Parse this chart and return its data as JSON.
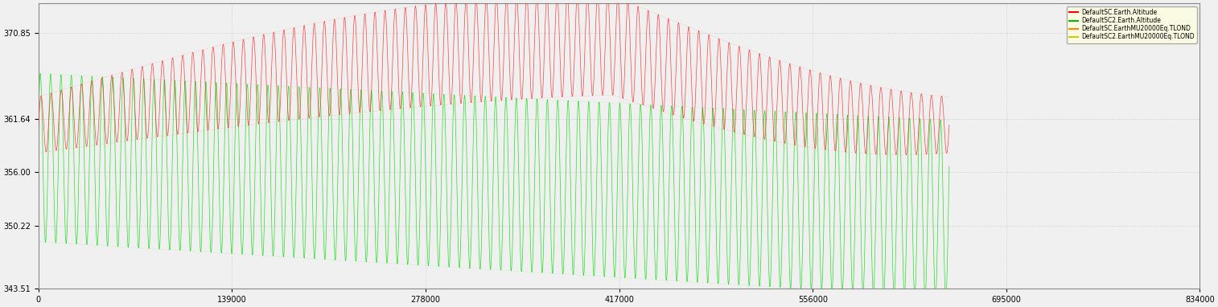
{
  "title": "",
  "xlabel": "",
  "ylabel": "",
  "xlim": [
    0,
    654000
  ],
  "ylim": [
    343.51,
    374.0
  ],
  "yticks": [
    370.85,
    361.64,
    356.0,
    350.22,
    343.51
  ],
  "xticks": [
    0,
    139000,
    278000,
    417000,
    556000,
    695000,
    834000
  ],
  "xtick_labels": [
    "0",
    "139000",
    "278000",
    "417000",
    "556000",
    "695000",
    "834000"
  ],
  "sc1_color": "#ff2222",
  "sc2_color": "#00dd00",
  "legend_labels": [
    "DefaultSC.Earth.Altitude",
    "DefaultSC2.Earth.Altitude",
    "DefaultSC.EarthMU20000Eq.TLOND",
    "DefaultSC2.EarthMU20000Eq.TLOND"
  ],
  "legend_colors": [
    "#ff0000",
    "#00bb00",
    "#ff8800",
    "#cccc00"
  ],
  "background_color": "#f0f0f0",
  "grid_color": "#bbbbbb",
  "total_time": 654000,
  "n_cycles_sc1": 90,
  "n_cycles_sc2": 88,
  "sc1_mean_start": 361.0,
  "sc1_mean_peak": 369.5,
  "sc1_peak_time": 0.63,
  "sc1_mean_end": 361.0,
  "sc1_amp_start": 3.0,
  "sc1_amp_peak": 5.5,
  "sc1_amp_end": 3.5,
  "sc2_mean_start": 357.5,
  "sc2_mean_end": 352.0,
  "sc2_amp_start": 9.0,
  "sc2_amp_end": 9.5
}
